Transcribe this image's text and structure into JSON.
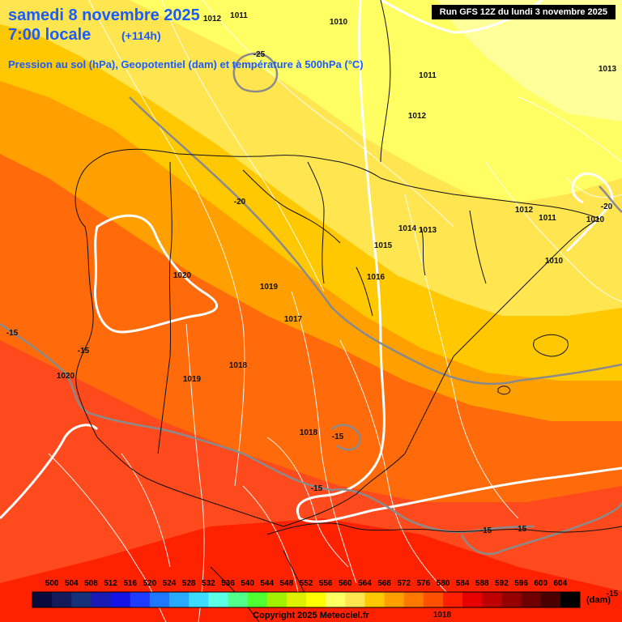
{
  "header": {
    "date_line": "samedi 8 novembre 2025",
    "time_line": "7:00 locale",
    "lead_time": "(+114h)",
    "subtitle": "Pression au sol (hPa), Geopotentiel (dam) et température à 500hPa (°C)",
    "run_info": "Run GFS 12Z du lundi 3 novembre 2025"
  },
  "pressure_labels": [
    "1012",
    "1011",
    "1010",
    "1013",
    "1011",
    "1012",
    "1012",
    "1011",
    "1010",
    "1010",
    "1014",
    "1013",
    "1015",
    "1016",
    "1020",
    "1019",
    "1017",
    "1018",
    "1019",
    "1020",
    "1018",
    "1018"
  ],
  "temperature_labels": [
    "-25",
    "-20",
    "-20",
    "-15",
    "-15",
    "-15",
    "-15",
    "-15",
    "-15",
    "-15"
  ],
  "colorbar": {
    "values": [
      "500",
      "504",
      "508",
      "512",
      "516",
      "520",
      "524",
      "528",
      "532",
      "536",
      "540",
      "544",
      "548",
      "552",
      "556",
      "560",
      "564",
      "568",
      "572",
      "576",
      "580",
      "584",
      "588",
      "592",
      "596",
      "600",
      "604"
    ],
    "colors": [
      "#0a0a3c",
      "#141a5a",
      "#16307a",
      "#1a1ab4",
      "#1414e6",
      "#1e3cff",
      "#1e78ff",
      "#28aaff",
      "#3cdcff",
      "#5affe6",
      "#50ff8c",
      "#50ff32",
      "#a0f000",
      "#dcf000",
      "#ffff00",
      "#ffff64",
      "#ffe650",
      "#ffc800",
      "#ffa000",
      "#ff7800",
      "#ff5000",
      "#ff1e00",
      "#e60000",
      "#be0000",
      "#960000",
      "#6e0000",
      "#4b0000",
      "#000000"
    ],
    "unit": "(dam)"
  },
  "copyright": "Copyright 2025 Meteociel.fr"
}
